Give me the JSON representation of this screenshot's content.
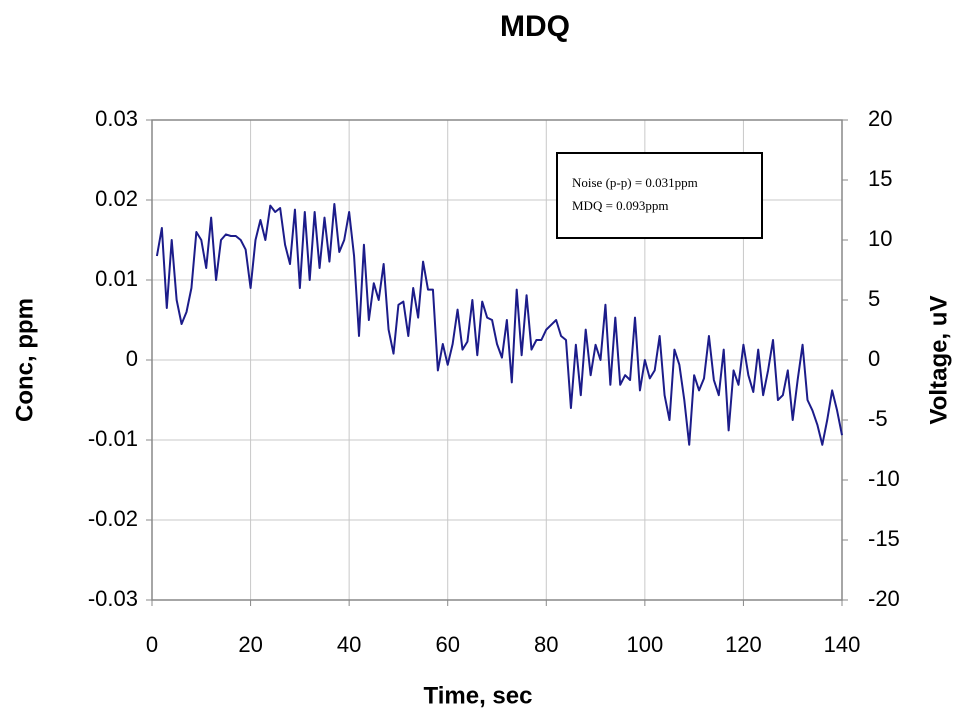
{
  "chart_data": {
    "type": "line",
    "title": "MDQ",
    "xlabel": "Time, sec",
    "ylabel": "Conc, ppm",
    "y2label": "Voltage, uV",
    "annotations": [
      "Noise (p-p) = 0.031ppm",
      "MDQ = 0.093ppm"
    ],
    "color": "#1c1c8a",
    "grid": true,
    "xlim": [
      0,
      140
    ],
    "xticks": [
      0,
      20,
      40,
      60,
      80,
      100,
      120,
      140
    ],
    "ylim": [
      -0.03,
      0.03
    ],
    "yticks": [
      -0.03,
      -0.02,
      -0.01,
      0,
      0.01,
      0.02,
      0.03
    ],
    "y2lim": [
      -20,
      20
    ],
    "y2ticks": [
      -20,
      -15,
      -10,
      -5,
      0,
      5,
      10,
      15,
      20
    ],
    "x": [
      1,
      2,
      3,
      4,
      5,
      6,
      7,
      8,
      9,
      10,
      11,
      12,
      13,
      14,
      15,
      16,
      17,
      18,
      19,
      20,
      21,
      22,
      23,
      24,
      25,
      26,
      27,
      28,
      29,
      30,
      31,
      32,
      33,
      34,
      35,
      36,
      37,
      38,
      39,
      40,
      41,
      42,
      43,
      44,
      45,
      46,
      47,
      48,
      49,
      50,
      51,
      52,
      53,
      54,
      55,
      56,
      57,
      58,
      59,
      60,
      61,
      62,
      63,
      64,
      65,
      66,
      67,
      68,
      69,
      70,
      71,
      72,
      73,
      74,
      75,
      76,
      77,
      78,
      79,
      80,
      81,
      82,
      83,
      84,
      85,
      86,
      87,
      88,
      89,
      90,
      91,
      92,
      93,
      94,
      95,
      96,
      97,
      98,
      99,
      100,
      101,
      102,
      103,
      104,
      105,
      106,
      107,
      108,
      109,
      110,
      111,
      112,
      113,
      114,
      115,
      116,
      117,
      118,
      119,
      120,
      121,
      122,
      123,
      124,
      125,
      126,
      127,
      128,
      129,
      130,
      131,
      132,
      133,
      134,
      135,
      136,
      137,
      138,
      139,
      140
    ],
    "values": [
      0.013,
      0.0165,
      0.0065,
      0.015,
      0.0075,
      0.0045,
      0.006,
      0.009,
      0.016,
      0.015,
      0.0115,
      0.0178,
      0.01,
      0.015,
      0.0157,
      0.0155,
      0.0155,
      0.015,
      0.0138,
      0.009,
      0.015,
      0.0175,
      0.015,
      0.0193,
      0.0185,
      0.019,
      0.0144,
      0.012,
      0.0188,
      0.009,
      0.0185,
      0.01,
      0.0185,
      0.0115,
      0.0178,
      0.0123,
      0.0195,
      0.0135,
      0.015,
      0.0185,
      0.013,
      0.003,
      0.0144,
      0.005,
      0.0096,
      0.0075,
      0.012,
      0.0038,
      0.0008,
      0.0069,
      0.0073,
      0.003,
      0.009,
      0.0053,
      0.0123,
      0.0088,
      0.0088,
      -0.0013,
      0.002,
      -0.0006,
      0.002,
      0.0063,
      0.0013,
      0.0023,
      0.0075,
      0.0006,
      0.0073,
      0.0053,
      0.005,
      0.002,
      0.0003,
      0.005,
      -0.0028,
      0.0088,
      0.0006,
      0.0081,
      0.0013,
      0.0025,
      0.0025,
      0.0038,
      0.0044,
      0.005,
      0.003,
      0.0025,
      -0.006,
      0.0019,
      -0.0044,
      0.0038,
      -0.0019,
      0.0019,
      0,
      0.0069,
      -0.0031,
      0.0053,
      -0.0031,
      -0.0019,
      -0.0025,
      0.0053,
      -0.0038,
      0,
      -0.0023,
      -0.0013,
      0.003,
      -0.0044,
      -0.0075,
      0.0013,
      -0.0006,
      -0.005,
      -0.0106,
      -0.0019,
      -0.0038,
      -0.0023,
      0.003,
      -0.0025,
      -0.0044,
      0.0013,
      -0.0088,
      -0.0013,
      -0.0031,
      0.0019,
      -0.0019,
      -0.004,
      0.0013,
      -0.0044,
      -0.0013,
      0.0025,
      -0.005,
      -0.0044,
      -0.0013,
      -0.0075,
      -0.0025,
      0.0019,
      -0.005,
      -0.0063,
      -0.0081,
      -0.0106,
      -0.0075,
      -0.0038,
      -0.0063,
      -0.0094
    ]
  }
}
